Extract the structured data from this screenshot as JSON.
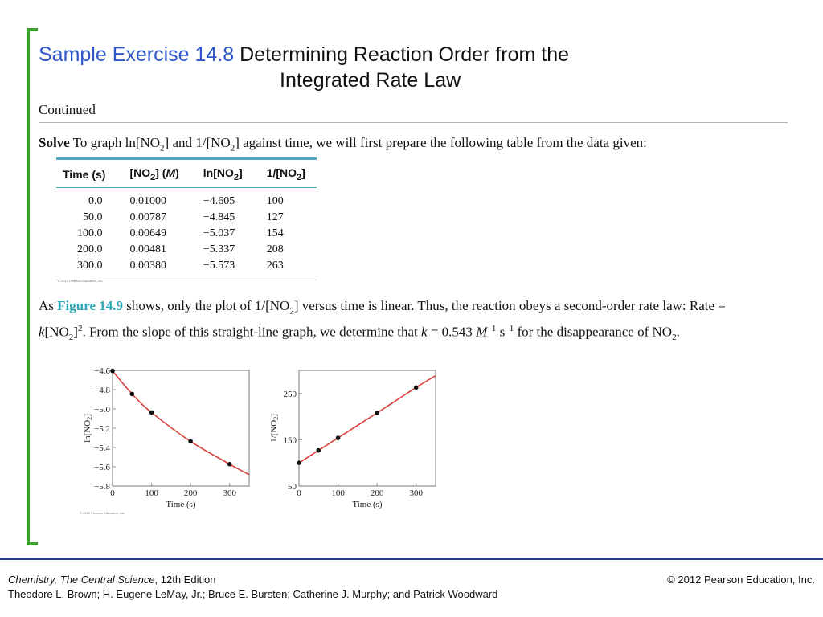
{
  "title": {
    "prefix": "Sample Exercise 14.8",
    "line1": "Determining Reaction Order from the",
    "line2": "Integrated Rate Law"
  },
  "continued": "Continued",
  "solve": {
    "label": "Solve",
    "text_a": "To graph ln[NO",
    "sub_a": "2",
    "text_b": "] and 1/[NO",
    "sub_b": "2",
    "text_c": "] against time, we will first prepare the following table from the data given:"
  },
  "table": {
    "headers": [
      "Time (s)",
      "[NO2] (M)",
      "ln[NO2]",
      "1/[NO2]"
    ],
    "rows": [
      [
        "0.0",
        "0.01000",
        "−4.605",
        "100"
      ],
      [
        "50.0",
        "0.00787",
        "−4.845",
        "127"
      ],
      [
        "100.0",
        "0.00649",
        "−5.037",
        "154"
      ],
      [
        "200.0",
        "0.00481",
        "−5.337",
        "208"
      ],
      [
        "300.0",
        "0.00380",
        "−5.573",
        "263"
      ]
    ],
    "copyright": "© 2012 Pearson Education, Inc."
  },
  "paragraph": {
    "as": "As ",
    "figure_link": "Figure 14.9",
    "t1": " shows, only the plot of 1/[NO",
    "s1": "2",
    "t2": "] versus time is linear. Thus, the reaction obeys a second-order rate law: Rate = ",
    "k1": "k",
    "t3": "[NO",
    "s2": "2",
    "t4": "]",
    "sup1": "2",
    "t5": ". From the slope of this straight-line graph, we determine that ",
    "k2": "k",
    "t6": " = 0.543 ",
    "M": "M",
    "sup2": "–1",
    "t7": " s",
    "sup3": "–1",
    "t8": " for the disappearance of NO",
    "s3": "2",
    "t9": "."
  },
  "figure_copyright": "© 2012 Pearson Education, Inc.",
  "chart_data": [
    {
      "type": "line",
      "xlabel": "Time (s)",
      "ylabel": "ln[NO2]",
      "xlim": [
        0,
        350
      ],
      "ylim": [
        -5.8,
        -4.6
      ],
      "xticks": [
        0,
        100,
        200,
        300
      ],
      "yticks": [
        -4.6,
        -4.8,
        -5.0,
        -5.2,
        -5.4,
        -5.6,
        -5.8
      ],
      "ytick_labels": [
        "−4.6",
        "−4.8",
        "−5.0",
        "−5.2",
        "−5.4",
        "−5.6",
        "−5.8"
      ],
      "points": {
        "x": [
          0,
          50,
          100,
          200,
          300
        ],
        "y": [
          -4.605,
          -4.845,
          -5.037,
          -5.337,
          -5.573
        ]
      },
      "curve_color": "#d9403a",
      "grid": false
    },
    {
      "type": "line",
      "xlabel": "Time (s)",
      "ylabel": "1/[NO2]",
      "xlim": [
        0,
        350
      ],
      "ylim": [
        50,
        300
      ],
      "xticks": [
        0,
        100,
        200,
        300
      ],
      "yticks": [
        50,
        150,
        250
      ],
      "ytick_labels": [
        "50",
        "150",
        "250"
      ],
      "points": {
        "x": [
          0,
          50,
          100,
          200,
          300
        ],
        "y": [
          100,
          127,
          154,
          208,
          263
        ]
      },
      "curve_color": "#d9403a",
      "grid": false
    }
  ],
  "footer": {
    "book_title": "Chemistry, The Central Science",
    "edition": ", 12th Edition",
    "authors": "Theodore L. Brown; H. Eugene LeMay, Jr.; Bruce E. Bursten; Catherine J. Murphy; and Patrick Woodward",
    "copyright": "© 2012 Pearson Education, Inc."
  },
  "colors": {
    "accent_green": "#3b9e2e",
    "title_blue": "#2f57c9",
    "link_teal": "#2aa6b5",
    "footer_navy": "#2c3a84"
  }
}
